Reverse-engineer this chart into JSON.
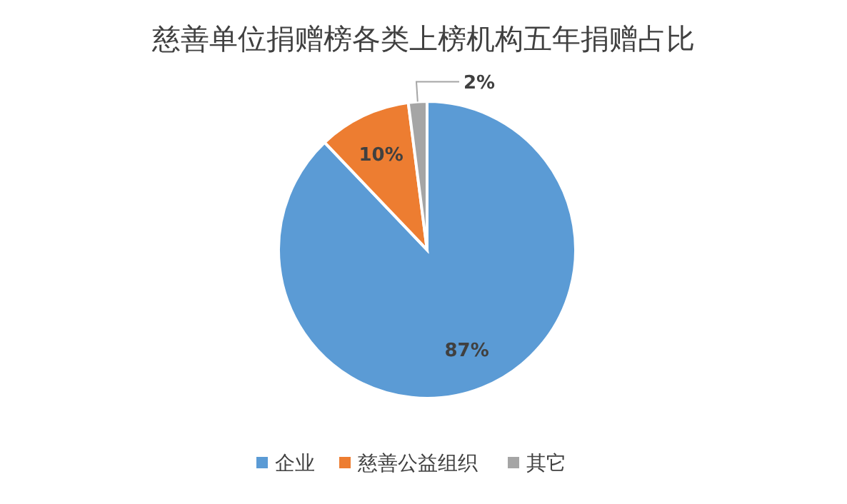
{
  "chart_data": {
    "type": "pie",
    "title": "慈善单位捐赠榜各类上榜机构五年捐赠占比",
    "categories": [
      "企业",
      "慈善公益组织",
      "其它"
    ],
    "values": [
      87,
      10,
      2
    ],
    "colors": [
      "#5b9bd5",
      "#ed7d31",
      "#a5a5a5"
    ],
    "value_labels": [
      "87%",
      "10%",
      "2%"
    ],
    "legend": "bottom"
  }
}
